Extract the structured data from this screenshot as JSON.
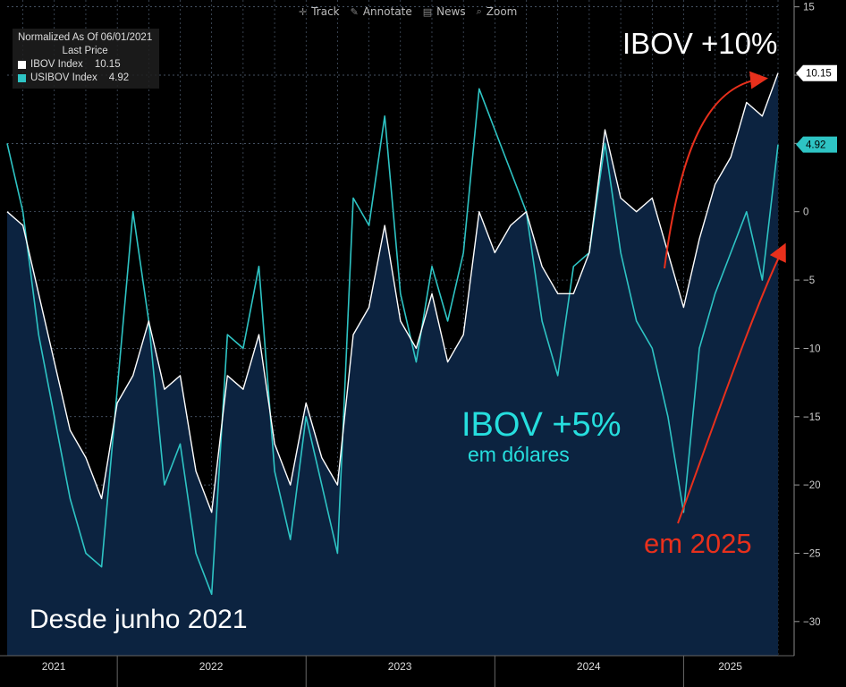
{
  "toolbar": {
    "track": "Track",
    "annotate": "Annotate",
    "news": "News",
    "zoom": "Zoom"
  },
  "legend": {
    "title": "Normalized As Of 06/01/2021",
    "subtitle": "Last Price",
    "items": [
      {
        "name": "IBOV Index",
        "value": "10.15",
        "color": "#ffffff"
      },
      {
        "name": "USIBOV Index",
        "value": "4.92",
        "color": "#2ec4c4"
      }
    ]
  },
  "annotations": {
    "ibov": "IBOV +10%",
    "usibov_line1": "IBOV +5%",
    "usibov_line2": "em dólares",
    "period": "em 2025",
    "since": "Desde junho 2021"
  },
  "colors": {
    "background": "#000000",
    "plot_fill": "#0c2340",
    "ibov": "#ffffff",
    "usibov": "#2ec4c4",
    "arrow": "#e8301c",
    "grid": "#5a6a80"
  },
  "chart_data": {
    "type": "line",
    "x_ticks": [
      "2021",
      "2022",
      "2023",
      "2024",
      "2025"
    ],
    "y_ticks": [
      15,
      10,
      5,
      0,
      -5,
      -10,
      -15,
      -20,
      -25,
      -30
    ],
    "ylim": [
      -32.5,
      15.5
    ],
    "y_axis_side": "right",
    "grid": true,
    "last_value_labels": {
      "ibov": "10.15",
      "usibov": "4.92"
    },
    "series": [
      {
        "name": "IBOV Index",
        "color": "#ffffff",
        "filled": true,
        "x": [
          "2021-06",
          "2021-07",
          "2021-08",
          "2021-09",
          "2021-10",
          "2021-11",
          "2021-12",
          "2022-01",
          "2022-02",
          "2022-03",
          "2022-04",
          "2022-05",
          "2022-06",
          "2022-07",
          "2022-08",
          "2022-09",
          "2022-10",
          "2022-11",
          "2022-12",
          "2023-01",
          "2023-02",
          "2023-03",
          "2023-04",
          "2023-05",
          "2023-06",
          "2023-07",
          "2023-08",
          "2023-09",
          "2023-10",
          "2023-11",
          "2023-12",
          "2024-01",
          "2024-02",
          "2024-03",
          "2024-04",
          "2024-05",
          "2024-06",
          "2024-07",
          "2024-08",
          "2024-09",
          "2024-10",
          "2024-11",
          "2024-12",
          "2025-01",
          "2025-02",
          "2025-03",
          "2025-04",
          "2025-05",
          "2025-06",
          "2025-07"
        ],
        "values": [
          0,
          -1,
          -6,
          -11,
          -16,
          -18,
          -21,
          -14,
          -12,
          -8,
          -13,
          -12,
          -19,
          -22,
          -12,
          -13,
          -9,
          -17,
          -20,
          -14,
          -18,
          -20,
          -9,
          -7,
          -1,
          -8,
          -10,
          -6,
          -11,
          -9,
          0,
          -3,
          -1,
          0,
          -4,
          -6,
          -6,
          -3,
          6,
          1,
          0,
          1,
          -3,
          -7,
          -2,
          2,
          4,
          8,
          7,
          10.15
        ]
      },
      {
        "name": "USIBOV Index",
        "color": "#2ec4c4",
        "filled": false,
        "x": [
          "2021-06",
          "2021-07",
          "2021-08",
          "2021-09",
          "2021-10",
          "2021-11",
          "2021-12",
          "2022-01",
          "2022-02",
          "2022-03",
          "2022-04",
          "2022-05",
          "2022-06",
          "2022-07",
          "2022-08",
          "2022-09",
          "2022-10",
          "2022-11",
          "2022-12",
          "2023-01",
          "2023-02",
          "2023-03",
          "2023-04",
          "2023-05",
          "2023-06",
          "2023-07",
          "2023-08",
          "2023-09",
          "2023-10",
          "2023-11",
          "2023-12",
          "2024-01",
          "2024-02",
          "2024-03",
          "2024-04",
          "2024-05",
          "2024-06",
          "2024-07",
          "2024-08",
          "2024-09",
          "2024-10",
          "2024-11",
          "2024-12",
          "2025-01",
          "2025-02",
          "2025-03",
          "2025-04",
          "2025-05",
          "2025-06",
          "2025-07"
        ],
        "values": [
          5,
          0,
          -9,
          -15,
          -21,
          -25,
          -26,
          -13,
          0,
          -8,
          -20,
          -17,
          -25,
          -28,
          -9,
          -10,
          -4,
          -19,
          -24,
          -15,
          -20,
          -25,
          1,
          -1,
          7,
          -6,
          -11,
          -4,
          -8,
          -3,
          9,
          6,
          3,
          0,
          -8,
          -12,
          -4,
          -3,
          5,
          -3,
          -8,
          -10,
          -15,
          -22,
          -10,
          -6,
          -3,
          0,
          -5,
          4.92
        ]
      }
    ]
  }
}
